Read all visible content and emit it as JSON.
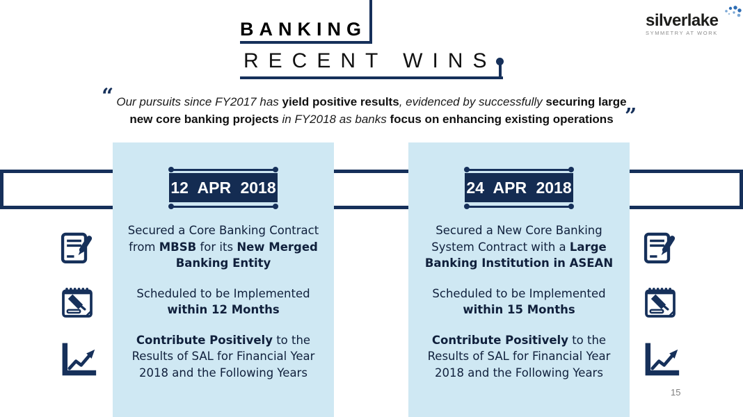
{
  "logo": {
    "name": "silverlake",
    "tagline": "SYMMETRY AT WORK"
  },
  "title": {
    "primary": "BANKING",
    "secondary": "RECENT WINS"
  },
  "quote": {
    "open_mark": "“",
    "close_mark": "”",
    "lines": [
      [
        {
          "text": "Our pursuits since FY2017 has "
        },
        {
          "text": "yield positive results",
          "bold": true
        },
        {
          "text": ", evidenced by successfully "
        },
        {
          "text": "securing large",
          "bold": true
        }
      ],
      [
        {
          "text": "new core banking projects",
          "bold": true
        },
        {
          "text": " in FY2018 as banks "
        },
        {
          "text": "focus on enhancing existing operations",
          "bold": true
        }
      ]
    ]
  },
  "panels": [
    {
      "date": "12 APR 2018",
      "paragraphs": [
        [
          {
            "text": "Secured a Core Banking Contract from "
          },
          {
            "text": "MBSB",
            "bold": true
          },
          {
            "text": " for its "
          },
          {
            "text": "New Merged Banking Entity",
            "bold": true
          }
        ],
        [
          {
            "text": "Scheduled to be Implemented "
          },
          {
            "text": "within 12 Months",
            "bold": true
          }
        ],
        [
          {
            "text": "Contribute Positively",
            "bold": true
          },
          {
            "text": " to the Results of SAL for Financial Year 2018 and the Following Years"
          }
        ]
      ]
    },
    {
      "date": "24 APR 2018",
      "paragraphs": [
        [
          {
            "text": "Secured a New Core Banking System Contract with a "
          },
          {
            "text": "Large Banking Institution in ASEAN",
            "bold": true
          }
        ],
        [
          {
            "text": "Scheduled to be Implemented "
          },
          {
            "text": "within 15 Months",
            "bold": true
          }
        ],
        [
          {
            "text": "Contribute Positively",
            "bold": true
          },
          {
            "text": " to the Results of SAL for Financial Year 2018 and the Following Years"
          }
        ]
      ]
    }
  ],
  "icons": {
    "left": [
      "contract-signing-icon",
      "gavel-calendar-icon",
      "growth-chart-icon"
    ],
    "right": [
      "contract-signing-icon",
      "gavel-calendar-icon",
      "growth-chart-icon"
    ]
  },
  "page_number": "15",
  "colors": {
    "navy": "#16305a",
    "badge_navy": "#142c52",
    "panel_blue": "#cfe8f3",
    "logo_dot_blue": "#2e6db4",
    "logo_dot_light": "#7aa7d4",
    "tagline_gray": "#8c8c8c"
  }
}
